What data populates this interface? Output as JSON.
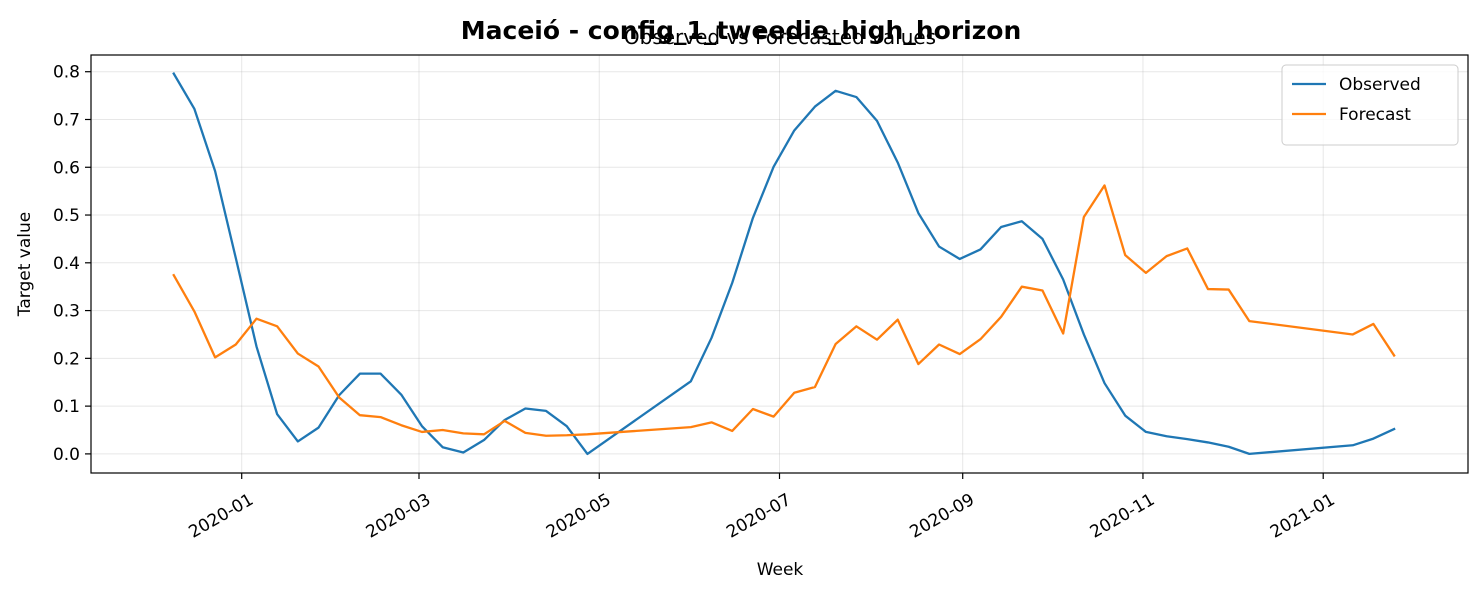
{
  "figure": {
    "suptitle": "Maceió - config_1_tweedie_high_horizon"
  },
  "chart_data": {
    "type": "line",
    "title": "Observed vs Forecasted values",
    "xlabel": "Week",
    "ylabel": "Target value",
    "x_axis": "date",
    "xlim": [
      "2019-11-11",
      "2021-02-19"
    ],
    "ylim": [
      -0.04,
      0.835
    ],
    "x_ticks": [
      "2020-01-01",
      "2020-03-01",
      "2020-05-01",
      "2020-07-01",
      "2020-09-01",
      "2020-11-01",
      "2021-01-01"
    ],
    "x_tick_labels": [
      "2020-01",
      "2020-03",
      "2020-05",
      "2020-07",
      "2020-09",
      "2020-11",
      "2021-01"
    ],
    "y_ticks": [
      0.0,
      0.1,
      0.2,
      0.3,
      0.4,
      0.5,
      0.6,
      0.7,
      0.8
    ],
    "y_tick_labels": [
      "0.0",
      "0.1",
      "0.2",
      "0.3",
      "0.4",
      "0.5",
      "0.6",
      "0.7",
      "0.8"
    ],
    "grid": true,
    "legend_position": "top-right",
    "series": [
      {
        "name": "Observed",
        "color": "#1f77b4",
        "points": [
          [
            "2019-12-09",
            0.796
          ],
          [
            "2019-12-16",
            0.722
          ],
          [
            "2019-12-23",
            0.592
          ],
          [
            "2019-12-30",
            0.41
          ],
          [
            "2020-01-06",
            0.225
          ],
          [
            "2020-01-13",
            0.083
          ],
          [
            "2020-01-20",
            0.026
          ],
          [
            "2020-01-27",
            0.055
          ],
          [
            "2020-02-03",
            0.123
          ],
          [
            "2020-02-10",
            0.168
          ],
          [
            "2020-02-17",
            0.168
          ],
          [
            "2020-02-24",
            0.124
          ],
          [
            "2020-03-02",
            0.058
          ],
          [
            "2020-03-09",
            0.014
          ],
          [
            "2020-03-16",
            0.003
          ],
          [
            "2020-03-23",
            0.029
          ],
          [
            "2020-03-30",
            0.071
          ],
          [
            "2020-04-06",
            0.095
          ],
          [
            "2020-04-13",
            0.09
          ],
          [
            "2020-04-20",
            0.058
          ],
          [
            "2020-04-27",
            0.0
          ],
          [
            "2020-06-01",
            0.152
          ],
          [
            "2020-06-08",
            0.243
          ],
          [
            "2020-06-15",
            0.358
          ],
          [
            "2020-06-22",
            0.494
          ],
          [
            "2020-06-29",
            0.601
          ],
          [
            "2020-07-06",
            0.677
          ],
          [
            "2020-07-13",
            0.727
          ],
          [
            "2020-07-20",
            0.76
          ],
          [
            "2020-07-27",
            0.747
          ],
          [
            "2020-08-03",
            0.697
          ],
          [
            "2020-08-10",
            0.61
          ],
          [
            "2020-08-17",
            0.504
          ],
          [
            "2020-08-24",
            0.434
          ],
          [
            "2020-08-31",
            0.408
          ],
          [
            "2020-09-07",
            0.428
          ],
          [
            "2020-09-14",
            0.475
          ],
          [
            "2020-09-21",
            0.487
          ],
          [
            "2020-09-28",
            0.45
          ],
          [
            "2020-10-05",
            0.365
          ],
          [
            "2020-10-12",
            0.25
          ],
          [
            "2020-10-19",
            0.148
          ],
          [
            "2020-10-26",
            0.08
          ],
          [
            "2020-11-02",
            0.046
          ],
          [
            "2020-11-09",
            0.037
          ],
          [
            "2020-11-16",
            0.031
          ],
          [
            "2020-11-23",
            0.024
          ],
          [
            "2020-11-30",
            0.015
          ],
          [
            "2020-12-07",
            0.0
          ],
          [
            "2021-01-11",
            0.018
          ],
          [
            "2021-01-18",
            0.032
          ],
          [
            "2021-01-25",
            0.052
          ]
        ]
      },
      {
        "name": "Forecast",
        "color": "#ff7f0e",
        "points": [
          [
            "2019-12-09",
            0.374
          ],
          [
            "2019-12-16",
            0.298
          ],
          [
            "2019-12-23",
            0.202
          ],
          [
            "2019-12-30",
            0.229
          ],
          [
            "2020-01-06",
            0.283
          ],
          [
            "2020-01-13",
            0.267
          ],
          [
            "2020-01-20",
            0.21
          ],
          [
            "2020-01-27",
            0.183
          ],
          [
            "2020-02-03",
            0.118
          ],
          [
            "2020-02-10",
            0.081
          ],
          [
            "2020-02-17",
            0.077
          ],
          [
            "2020-02-24",
            0.06
          ],
          [
            "2020-03-02",
            0.046
          ],
          [
            "2020-03-09",
            0.05
          ],
          [
            "2020-03-16",
            0.043
          ],
          [
            "2020-03-23",
            0.041
          ],
          [
            "2020-03-30",
            0.069
          ],
          [
            "2020-04-06",
            0.044
          ],
          [
            "2020-04-13",
            0.038
          ],
          [
            "2020-04-20",
            0.039
          ],
          [
            "2020-04-27",
            0.041
          ],
          [
            "2020-06-01",
            0.056
          ],
          [
            "2020-06-08",
            0.066
          ],
          [
            "2020-06-15",
            0.048
          ],
          [
            "2020-06-22",
            0.094
          ],
          [
            "2020-06-29",
            0.078
          ],
          [
            "2020-07-06",
            0.128
          ],
          [
            "2020-07-13",
            0.14
          ],
          [
            "2020-07-20",
            0.23
          ],
          [
            "2020-07-27",
            0.267
          ],
          [
            "2020-08-03",
            0.239
          ],
          [
            "2020-08-10",
            0.281
          ],
          [
            "2020-08-17",
            0.188
          ],
          [
            "2020-08-24",
            0.229
          ],
          [
            "2020-08-31",
            0.209
          ],
          [
            "2020-09-07",
            0.24
          ],
          [
            "2020-09-14",
            0.287
          ],
          [
            "2020-09-21",
            0.35
          ],
          [
            "2020-09-28",
            0.342
          ],
          [
            "2020-10-05",
            0.252
          ],
          [
            "2020-10-12",
            0.496
          ],
          [
            "2020-10-19",
            0.562
          ],
          [
            "2020-10-26",
            0.416
          ],
          [
            "2020-11-02",
            0.379
          ],
          [
            "2020-11-09",
            0.414
          ],
          [
            "2020-11-16",
            0.43
          ],
          [
            "2020-11-23",
            0.345
          ],
          [
            "2020-11-30",
            0.344
          ],
          [
            "2020-12-07",
            0.278
          ],
          [
            "2021-01-11",
            0.25
          ],
          [
            "2021-01-18",
            0.272
          ],
          [
            "2021-01-25",
            0.206
          ]
        ]
      }
    ]
  }
}
